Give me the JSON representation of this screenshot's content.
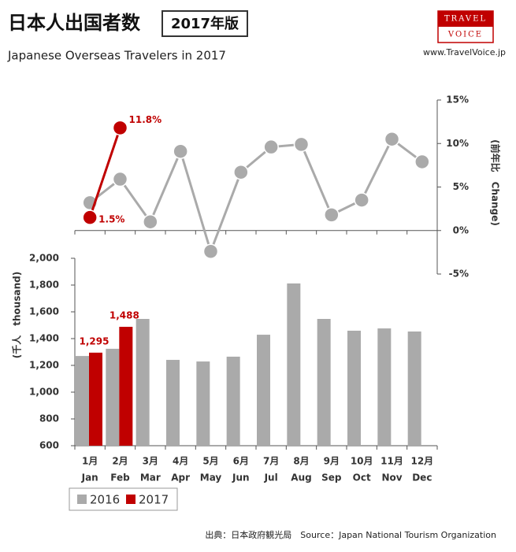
{
  "header": {
    "title": "日本人出国者数",
    "badge": "2017年版",
    "subtitle": "Japanese Overseas Travelers in 2017",
    "logo_top": "TRAVEL",
    "logo_bottom": "VOICE",
    "url": "www.TravelVoice.jp",
    "source": "出典：日本政府観光局　Source：Japan National Tourism Organization"
  },
  "chart_data": [
    {
      "type": "line",
      "y2_label": "(前年比　Change)",
      "y2lim": [
        -5,
        15
      ],
      "y2ticks": [
        {
          "value": -5,
          "label": "-5%"
        },
        {
          "value": 0,
          "label": "0%"
        },
        {
          "value": 5,
          "label": "5%"
        },
        {
          "value": 10,
          "label": "10%"
        },
        {
          "value": 15,
          "label": "15%"
        }
      ],
      "series": [
        {
          "name": "2016",
          "color": "#aaaaaa",
          "axis": "y2",
          "values": [
            3.2,
            5.9,
            1.0,
            9.1,
            -2.4,
            6.7,
            9.6,
            9.9,
            1.8,
            3.5,
            10.5,
            7.9
          ]
        },
        {
          "name": "2017",
          "color": "#c00000",
          "axis": "y2",
          "values": [
            1.5,
            11.8,
            null,
            null,
            null,
            null,
            null,
            null,
            null,
            null,
            null,
            null
          ],
          "value_labels": [
            "1.5%",
            "11.8%",
            null,
            null,
            null,
            null,
            null,
            null,
            null,
            null,
            null,
            null
          ]
        }
      ]
    },
    {
      "type": "bar",
      "y_label": "(千人　thousand)",
      "categories": [
        "1月",
        "2月",
        "3月",
        "4月",
        "5月",
        "6月",
        "7月",
        "8月",
        "9月",
        "10月",
        "11月",
        "12月"
      ],
      "categories_en": [
        "Jan",
        "Feb",
        "Mar",
        "Apr",
        "May",
        "Jun",
        "Jul",
        "Aug",
        "Sep",
        "Oct",
        "Nov",
        "Dec"
      ],
      "ylim": [
        600,
        2000
      ],
      "yticks": [
        600,
        800,
        {
          "value": 1000,
          "label": "1,000"
        },
        {
          "value": 1200,
          "label": "1,200"
        },
        {
          "value": 1400,
          "label": "1,400"
        },
        {
          "value": 1600,
          "label": "1,600"
        },
        {
          "value": 1800,
          "label": "1,800"
        },
        {
          "value": 2000,
          "label": "2,000"
        }
      ],
      "series": [
        {
          "name": "2016",
          "color": "#aaaaaa",
          "values": [
            1270,
            1324,
            1547,
            1241,
            1229,
            1265,
            1429,
            1812,
            1547,
            1459,
            1476,
            1453
          ]
        },
        {
          "name": "2017",
          "color": "#c00000",
          "values": [
            1295,
            1488,
            null,
            null,
            null,
            null,
            null,
            null,
            null,
            null,
            null,
            null
          ],
          "value_labels": [
            "1,295",
            "1,488",
            null,
            null,
            null,
            null,
            null,
            null,
            null,
            null,
            null,
            null
          ]
        }
      ],
      "legend": "bottom-left"
    }
  ]
}
